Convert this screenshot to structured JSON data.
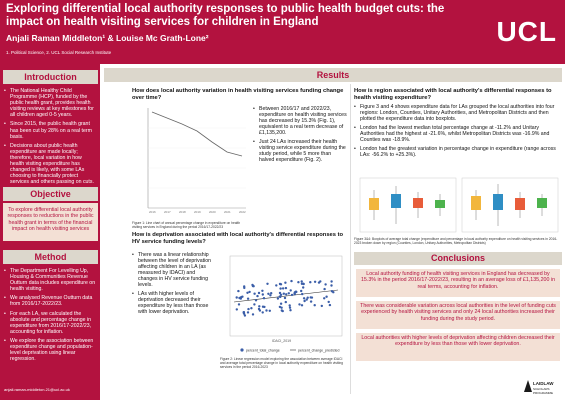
{
  "header": {
    "title": "Exploring differential local authority responses to public health budget cuts: the impact on health visiting services for children in England",
    "authors": "Anjali Raman Middleton¹ & Louise Mc Grath-Lone²",
    "affiliations": "1. Political Science, 2. UCL Social Research Institute",
    "logo": "UCL"
  },
  "intro": {
    "heading": "Introduction",
    "bullets": [
      "The National Healthy Child Programme (HCP), funded by the public health grant, provides health visiting reviews at key milestones for all children aged 0-5 years.",
      "Since 2015, the public health grant has been cut by 28% on a real term basis.",
      "Decisions about public health expenditure are made locally; therefore, local variation in how health visiting expenditure has changed is likely, with some LAs choosing to financially protect services and others passing on cuts."
    ]
  },
  "objective": {
    "heading": "Objective",
    "text": "To explore differential local authority responses to reductions in the public health grant in terms of the financial impact on health visiting services"
  },
  "method": {
    "heading": "Method",
    "bullets": [
      "The Department For Levelling Up, Housing & Communities Revenue Outturn data includes expenditure on health visiting.",
      "We analysed Revenue Outturn data from 2016/17-2022/23.",
      "For each LA, we calculated the absolute and percentage change in expenditure from 2016/17-2022/23, accounting for inflation.",
      "We explore the association between expenditure change and population-level deprivation using linear regression."
    ]
  },
  "email": "anjali.raman-middleton.21@ucl.ac.uk",
  "results": {
    "heading": "Results",
    "q1": {
      "heading": "How does local authority variation in health visiting services funding change over time?",
      "bullets": [
        "Between 2016/17 and 2022/23, expenditure on health visiting services has decreased by 15.3% (Fig. 1), equivalent to a real term decrease of £1,135,200.",
        "Just 24 LAs increased their health visiting service expenditure during the study period, while 5 more than halved expenditure (Fig. 2)."
      ],
      "caption": "Figure 1: Line chart of annual percentage change in expenditure on health visiting services in England during the period 2016/17-2022/23"
    },
    "q2": {
      "heading": "How is deprivation associated with local authority's differential responses to HV service funding levels?",
      "bullets": [
        "There was a linear relationship between the level of deprivation affecting children in an LA (as measured by IDACI) and changes in HV service funding levels.",
        "LAs with higher levels of deprivation decreased their expenditure by less than those with lower deprivation."
      ],
      "caption": "Figure 2: Linear regression model exploring the association between average IDACI and average total percentage change in local authority expenditure on health visiting services in the period 2016-2023",
      "legend": [
        "percent_total_change",
        "percent_change_predicted"
      ],
      "xlabel": "IDACI_2019"
    },
    "q3": {
      "heading": "How is region associated with local authority's differential responses to health visiting expenditure?",
      "bullets": [
        "Figure 3 and 4 shows expenditure data for LAs grouped the local authorities into four regions: London, Counties, Unitary Authorities, and Metropolitan Districts and then plotted the expenditure data into boxplots.",
        "London had the lowest median total percentage change at -11.2% and Unitary Authorities had the highest at -21.6%, whilst Metropolitan Districts was -16.9% and Counties was -18.9%.",
        "London had the greatest variation in percentage change in expenditure (range across LAs: -56.2% to +25.3%)."
      ],
      "caption": "Figure 3&4: Boxplots of average total change (expenditure and percentage in local authority expenditure on health visiting services in 2016-2023 broken down by region (Counties, London, Unitary Authorities, Metropolitan Districts)"
    }
  },
  "conclusions": {
    "heading": "Conclusions",
    "items": [
      "Local authority funding of health visiting services in England has decreased by 15.3% in the period 2016/17-2022/23, resulting in an average loss of £1,135,200 in real terms, accounting for inflation.",
      "There was considerable variation across local authorities in the level of funding cuts experienced by health visiting services and only 24 local authorities increased their funding during the study period.",
      "Local authorities with higher levels of deprivation affecting children decreased their expenditure by less than those with lower deprivation."
    ]
  },
  "sponsor": {
    "name": "LAIDLAW",
    "sub": "SCHOLARS PROGRAMME"
  },
  "colors": {
    "brand": "#b3123f",
    "panel": "#dcd7cc",
    "box": "#f3e0d5"
  }
}
